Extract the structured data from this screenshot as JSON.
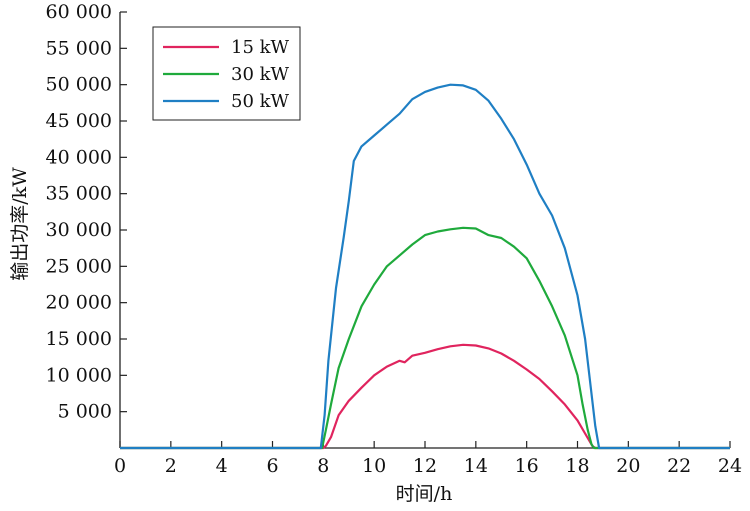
{
  "chart_data": {
    "type": "line",
    "xlabel": "时间/h",
    "ylabel": "输出功率/kW",
    "xlim": [
      0,
      24
    ],
    "ylim": [
      0,
      60000
    ],
    "xticks": [
      0,
      2,
      4,
      6,
      8,
      10,
      12,
      14,
      16,
      18,
      20,
      22,
      24
    ],
    "xtick_labels": [
      "0",
      "2",
      "4",
      "6",
      "8",
      "10",
      "12",
      "14",
      "16",
      "18",
      "20",
      "22",
      "24"
    ],
    "yticks": [
      5000,
      10000,
      15000,
      20000,
      25000,
      30000,
      35000,
      40000,
      45000,
      50000,
      55000,
      60000
    ],
    "ytick_labels": [
      "5 000",
      "10 000",
      "15 000",
      "20 000",
      "25 000",
      "30 000",
      "35 000",
      "40 000",
      "45 000",
      "50 000",
      "55 000",
      "60 000"
    ],
    "grid": false,
    "legend_position": "top-left",
    "series": [
      {
        "name": "15 kW",
        "color": "#e0245e",
        "x": [
          0,
          8.0,
          8.1,
          8.3,
          8.6,
          9.0,
          9.5,
          10.0,
          10.5,
          11.0,
          11.2,
          11.5,
          12.0,
          12.5,
          13.0,
          13.5,
          14.0,
          14.5,
          15.0,
          15.5,
          16.0,
          16.5,
          17.0,
          17.5,
          18.0,
          18.3,
          18.5,
          18.6,
          18.7,
          24
        ],
        "y": [
          0,
          0,
          300,
          1500,
          4500,
          6500,
          8300,
          10000,
          11200,
          12000,
          11800,
          12700,
          13100,
          13600,
          14000,
          14200,
          14100,
          13700,
          13000,
          12000,
          10800,
          9500,
          7800,
          6000,
          3800,
          2000,
          800,
          200,
          0,
          0
        ]
      },
      {
        "name": "30 kW",
        "color": "#1faa3c",
        "x": [
          0,
          7.95,
          8.1,
          8.3,
          8.6,
          9.0,
          9.5,
          10.0,
          10.5,
          11.0,
          11.5,
          12.0,
          12.5,
          13.0,
          13.5,
          14.0,
          14.5,
          15.0,
          15.5,
          16.0,
          16.5,
          17.0,
          17.5,
          18.0,
          18.2,
          18.4,
          18.55,
          18.65,
          24
        ],
        "y": [
          0,
          0,
          2500,
          6000,
          11000,
          15000,
          19500,
          22500,
          25000,
          26500,
          28000,
          29300,
          29800,
          30100,
          30300,
          30200,
          29300,
          28900,
          27700,
          26100,
          23000,
          19500,
          15500,
          10000,
          6000,
          2500,
          500,
          0,
          0
        ]
      },
      {
        "name": "50 kW",
        "color": "#1f7fc4",
        "x": [
          0,
          7.9,
          8.05,
          8.2,
          8.5,
          8.8,
          9.0,
          9.2,
          9.5,
          10.0,
          10.5,
          11.0,
          11.5,
          12.0,
          12.5,
          13.0,
          13.5,
          14.0,
          14.5,
          15.0,
          15.5,
          16.0,
          16.5,
          17.0,
          17.5,
          18.0,
          18.3,
          18.5,
          18.7,
          18.85,
          24
        ],
        "y": [
          0,
          0,
          4500,
          12000,
          22000,
          29000,
          34000,
          39500,
          41500,
          43000,
          44500,
          46000,
          48000,
          49000,
          49600,
          50000,
          49900,
          49300,
          47800,
          45300,
          42500,
          39000,
          35000,
          32000,
          27500,
          21000,
          15000,
          9000,
          3000,
          0,
          0
        ]
      }
    ]
  }
}
